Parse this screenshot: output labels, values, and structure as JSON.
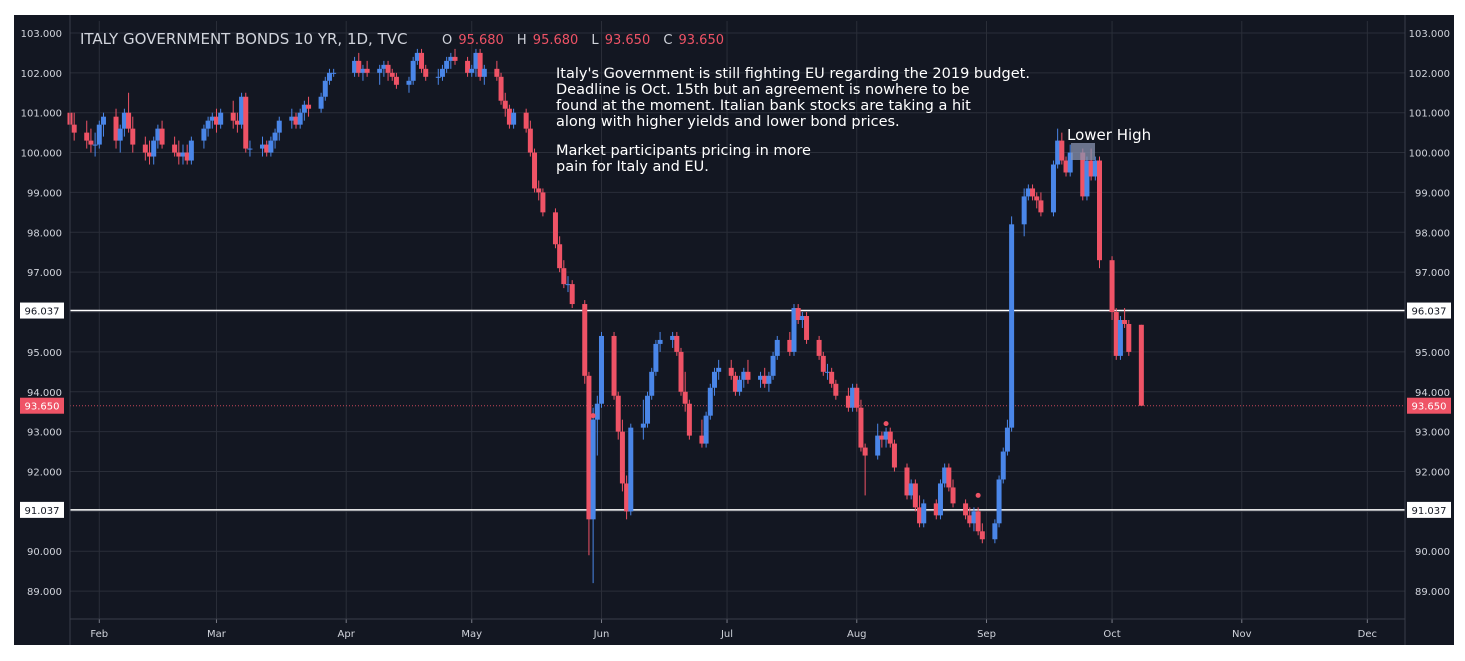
{
  "header": {
    "title": "ITALY GOVERNMENT BONDS 10 YR, 1D, TVC",
    "open_label": "O",
    "open_value": "95.680",
    "high_label": "H",
    "high_value": "95.680",
    "low_label": "L",
    "low_value": "93.650",
    "close_label": "C",
    "close_value": "93.650"
  },
  "annotations": {
    "note_lines": [
      "Italy's Government is still fighting EU regarding the 2019 budget.",
      "Deadline is Oct. 15th but an agreement is nowhere to be",
      "found at the moment. Italian bank stocks are taking a hit",
      "along with higher yields and lower bond prices.",
      "",
      "Market participants pricing in more",
      "pain for Italy and EU."
    ],
    "lower_high": "Lower High"
  },
  "colors": {
    "background": "#131722",
    "grid": "#2a2e39",
    "up": "#4a86e8",
    "down": "#ef5366",
    "level_line": "#ffffff",
    "last_price": "#ef5366",
    "text": "#d1d4dc"
  },
  "chart_data": {
    "type": "candlestick",
    "symbol": "ITALY GOVERNMENT BONDS 10 YR",
    "interval": "1D",
    "source": "TVC",
    "y_axis": {
      "ylim": [
        88.3,
        103.3
      ],
      "tick_labels": [
        "103.000",
        "102.000",
        "101.000",
        "100.000",
        "99.000",
        "98.000",
        "97.000",
        "96.000",
        "95.000",
        "94.000",
        "93.000",
        "92.000",
        "91.000",
        "90.000",
        "89.000"
      ],
      "tick_values": [
        103,
        102,
        101,
        100,
        99,
        98,
        97,
        96,
        95,
        94,
        93,
        92,
        91,
        90,
        89
      ]
    },
    "x_axis": {
      "tick_labels": [
        "Feb",
        "Mar",
        "Apr",
        "May",
        "Jun",
        "Jul",
        "Aug",
        "Sep",
        "Oct",
        "Nov",
        "Dec"
      ],
      "tick_dates": [
        "2018-02-01",
        "2018-03-01",
        "2018-04-01",
        "2018-05-01",
        "2018-06-01",
        "2018-07-01",
        "2018-08-01",
        "2018-09-01",
        "2018-10-01",
        "2018-11-01",
        "2018-12-01"
      ],
      "range": [
        "2018-01-25",
        "2018-12-10"
      ]
    },
    "horizontal_levels": [
      {
        "value": 96.037,
        "label": "96.037"
      },
      {
        "value": 91.037,
        "label": "91.037"
      }
    ],
    "last_price": {
      "value": 93.65,
      "label": "93.650"
    },
    "grid": true,
    "candles": [
      [
        "2018-01-25",
        101.0,
        101.4,
        100.4,
        100.7
      ],
      [
        "2018-01-26",
        100.7,
        101.0,
        100.3,
        100.5
      ],
      [
        "2018-01-29",
        100.5,
        100.8,
        100.1,
        100.3
      ],
      [
        "2018-01-30",
        100.3,
        100.6,
        100.0,
        100.2
      ],
      [
        "2018-01-31",
        100.2,
        100.5,
        99.9,
        100.2
      ],
      [
        "2018-02-01",
        100.2,
        100.8,
        100.1,
        100.7
      ],
      [
        "2018-02-02",
        100.7,
        101.0,
        100.4,
        100.9
      ],
      [
        "2018-02-05",
        100.9,
        101.1,
        100.1,
        100.3
      ],
      [
        "2018-02-06",
        100.3,
        100.7,
        100.0,
        100.6
      ],
      [
        "2018-02-07",
        100.6,
        101.1,
        100.4,
        101.0
      ],
      [
        "2018-02-08",
        101.0,
        101.5,
        100.5,
        100.6
      ],
      [
        "2018-02-09",
        100.6,
        100.9,
        100.0,
        100.2
      ],
      [
        "2018-02-12",
        100.2,
        100.4,
        99.8,
        100.0
      ],
      [
        "2018-02-13",
        100.0,
        100.3,
        99.7,
        99.9
      ],
      [
        "2018-02-14",
        99.9,
        100.4,
        99.7,
        100.3
      ],
      [
        "2018-02-15",
        100.3,
        100.7,
        100.1,
        100.6
      ],
      [
        "2018-02-16",
        100.6,
        100.8,
        100.1,
        100.2
      ],
      [
        "2018-02-19",
        100.2,
        100.4,
        99.9,
        100.0
      ],
      [
        "2018-02-20",
        100.0,
        100.3,
        99.7,
        99.9
      ],
      [
        "2018-02-21",
        99.9,
        100.2,
        99.7,
        100.0
      ],
      [
        "2018-02-22",
        100.0,
        100.2,
        99.7,
        99.8
      ],
      [
        "2018-02-23",
        99.8,
        100.4,
        99.7,
        100.3
      ],
      [
        "2018-02-26",
        100.3,
        100.7,
        100.1,
        100.6
      ],
      [
        "2018-02-27",
        100.6,
        100.9,
        100.4,
        100.8
      ],
      [
        "2018-02-28",
        100.8,
        101.0,
        100.6,
        100.9
      ],
      [
        "2018-03-01",
        100.9,
        101.1,
        100.5,
        100.7
      ],
      [
        "2018-03-02",
        100.7,
        101.1,
        100.6,
        101.0
      ],
      [
        "2018-03-05",
        101.0,
        101.3,
        100.6,
        100.8
      ],
      [
        "2018-03-06",
        100.8,
        101.0,
        100.5,
        100.7
      ],
      [
        "2018-03-07",
        100.7,
        101.5,
        100.6,
        101.4
      ],
      [
        "2018-03-08",
        101.4,
        101.5,
        100.0,
        100.1
      ],
      [
        "2018-03-09",
        100.1,
        100.3,
        99.9,
        100.1
      ],
      [
        "2018-03-12",
        100.1,
        100.4,
        99.9,
        100.2
      ],
      [
        "2018-03-13",
        100.2,
        100.3,
        99.9,
        100.0
      ],
      [
        "2018-03-14",
        100.0,
        100.4,
        99.9,
        100.3
      ],
      [
        "2018-03-15",
        100.3,
        100.6,
        100.1,
        100.5
      ],
      [
        "2018-03-16",
        100.5,
        100.9,
        100.3,
        100.8
      ],
      [
        "2018-03-19",
        100.8,
        101.1,
        100.6,
        100.9
      ],
      [
        "2018-03-20",
        100.9,
        101.0,
        100.6,
        100.7
      ],
      [
        "2018-03-21",
        100.7,
        101.1,
        100.6,
        101.0
      ],
      [
        "2018-03-22",
        101.0,
        101.3,
        100.8,
        101.2
      ],
      [
        "2018-03-23",
        101.2,
        101.4,
        100.9,
        101.1
      ],
      [
        "2018-03-26",
        101.1,
        101.5,
        101.0,
        101.4
      ],
      [
        "2018-03-27",
        101.4,
        101.9,
        101.3,
        101.8
      ],
      [
        "2018-03-28",
        101.8,
        102.1,
        101.7,
        102.0
      ],
      [
        "2018-03-29",
        102.0,
        102.1,
        101.9,
        102.0
      ],
      [
        "2018-04-03",
        102.0,
        102.4,
        101.9,
        102.3
      ],
      [
        "2018-04-04",
        102.3,
        102.5,
        101.9,
        102.0
      ],
      [
        "2018-04-05",
        102.0,
        102.2,
        101.8,
        102.1
      ],
      [
        "2018-04-06",
        102.1,
        102.3,
        101.9,
        102.0
      ],
      [
        "2018-04-09",
        102.0,
        102.2,
        101.7,
        102.1
      ],
      [
        "2018-04-10",
        102.1,
        102.3,
        101.9,
        102.2
      ],
      [
        "2018-04-11",
        102.2,
        102.3,
        101.8,
        102.0
      ],
      [
        "2018-04-12",
        102.0,
        102.1,
        101.8,
        101.9
      ],
      [
        "2018-04-13",
        101.9,
        102.0,
        101.6,
        101.7
      ],
      [
        "2018-04-16",
        101.7,
        101.9,
        101.5,
        101.8
      ],
      [
        "2018-04-17",
        101.8,
        102.4,
        101.7,
        102.3
      ],
      [
        "2018-04-18",
        102.3,
        102.6,
        102.2,
        102.5
      ],
      [
        "2018-04-19",
        102.5,
        102.6,
        102.0,
        102.1
      ],
      [
        "2018-04-20",
        102.1,
        102.2,
        101.8,
        101.9
      ],
      [
        "2018-04-23",
        101.9,
        102.1,
        101.7,
        101.9
      ],
      [
        "2018-04-24",
        101.9,
        102.2,
        101.8,
        102.1
      ],
      [
        "2018-04-25",
        102.1,
        102.4,
        102.0,
        102.3
      ],
      [
        "2018-04-26",
        102.3,
        102.5,
        102.1,
        102.4
      ],
      [
        "2018-04-27",
        102.4,
        102.6,
        102.2,
        102.3
      ],
      [
        "2018-04-30",
        102.3,
        102.4,
        101.9,
        102.0
      ],
      [
        "2018-05-01",
        102.0,
        102.2,
        101.9,
        102.1
      ],
      [
        "2018-05-02",
        102.1,
        102.6,
        101.9,
        102.5
      ],
      [
        "2018-05-03",
        102.5,
        102.6,
        101.8,
        101.9
      ],
      [
        "2018-05-04",
        101.9,
        102.2,
        101.7,
        102.1
      ],
      [
        "2018-05-07",
        102.1,
        102.3,
        101.8,
        101.9
      ],
      [
        "2018-05-08",
        101.9,
        102.0,
        101.2,
        101.3
      ],
      [
        "2018-05-09",
        101.3,
        101.5,
        100.9,
        101.1
      ],
      [
        "2018-05-10",
        101.1,
        101.2,
        100.6,
        100.7
      ],
      [
        "2018-05-11",
        100.7,
        101.1,
        100.6,
        101.0
      ],
      [
        "2018-05-14",
        101.0,
        101.1,
        100.5,
        100.6
      ],
      [
        "2018-05-15",
        100.6,
        100.8,
        99.9,
        100.0
      ],
      [
        "2018-05-16",
        100.0,
        100.1,
        99.0,
        99.1
      ],
      [
        "2018-05-17",
        99.1,
        99.3,
        98.8,
        99.0
      ],
      [
        "2018-05-18",
        99.0,
        99.1,
        98.4,
        98.5
      ],
      [
        "2018-05-21",
        98.5,
        98.6,
        97.6,
        97.7
      ],
      [
        "2018-05-22",
        97.7,
        97.9,
        97.0,
        97.1
      ],
      [
        "2018-05-23",
        97.1,
        97.3,
        96.6,
        96.7
      ],
      [
        "2018-05-24",
        96.7,
        96.9,
        96.5,
        96.7
      ],
      [
        "2018-05-25",
        96.7,
        96.8,
        96.1,
        96.2
      ],
      [
        "2018-05-28",
        96.2,
        96.3,
        94.2,
        94.4
      ],
      [
        "2018-05-29",
        94.4,
        94.5,
        89.9,
        90.8
      ],
      [
        "2018-05-30",
        90.8,
        93.6,
        89.2,
        93.3
      ],
      [
        "2018-05-31",
        93.3,
        93.9,
        92.4,
        93.7
      ],
      [
        "2018-06-01",
        93.7,
        95.5,
        93.6,
        95.4
      ],
      [
        "2018-06-04",
        95.4,
        95.5,
        93.8,
        93.9
      ],
      [
        "2018-06-05",
        93.9,
        94.0,
        92.8,
        93.0
      ],
      [
        "2018-06-06",
        93.0,
        93.3,
        91.5,
        91.7
      ],
      [
        "2018-06-07",
        91.7,
        91.9,
        90.8,
        91.0
      ],
      [
        "2018-06-08",
        91.0,
        93.2,
        90.9,
        93.1
      ],
      [
        "2018-06-11",
        93.1,
        93.8,
        92.8,
        93.2
      ],
      [
        "2018-06-12",
        93.2,
        94.0,
        93.1,
        93.9
      ],
      [
        "2018-06-13",
        93.9,
        94.6,
        93.8,
        94.5
      ],
      [
        "2018-06-14",
        94.5,
        95.3,
        94.4,
        95.2
      ],
      [
        "2018-06-15",
        95.2,
        95.5,
        95.0,
        95.3
      ],
      [
        "2018-06-18",
        95.3,
        95.5,
        95.1,
        95.4
      ],
      [
        "2018-06-19",
        95.4,
        95.5,
        94.9,
        95.0
      ],
      [
        "2018-06-20",
        95.0,
        95.1,
        93.9,
        94.0
      ],
      [
        "2018-06-21",
        94.0,
        94.5,
        93.5,
        93.7
      ],
      [
        "2018-06-22",
        93.7,
        93.8,
        92.8,
        92.9
      ],
      [
        "2018-06-25",
        92.9,
        93.3,
        92.6,
        92.7
      ],
      [
        "2018-06-26",
        92.7,
        93.5,
        92.6,
        93.4
      ],
      [
        "2018-06-27",
        93.4,
        94.2,
        93.3,
        94.1
      ],
      [
        "2018-06-28",
        94.1,
        94.6,
        93.9,
        94.5
      ],
      [
        "2018-06-29",
        94.5,
        94.8,
        94.3,
        94.6
      ],
      [
        "2018-07-02",
        94.6,
        94.8,
        94.3,
        94.4
      ],
      [
        "2018-07-03",
        94.4,
        94.5,
        93.9,
        94.0
      ],
      [
        "2018-07-04",
        94.0,
        94.4,
        93.9,
        94.3
      ],
      [
        "2018-07-05",
        94.3,
        94.6,
        94.1,
        94.5
      ],
      [
        "2018-07-06",
        94.5,
        94.8,
        94.2,
        94.3
      ],
      [
        "2018-07-09",
        94.3,
        94.5,
        94.1,
        94.4
      ],
      [
        "2018-07-10",
        94.4,
        94.6,
        94.1,
        94.2
      ],
      [
        "2018-07-11",
        94.2,
        94.5,
        94.0,
        94.4
      ],
      [
        "2018-07-12",
        94.4,
        95.0,
        94.3,
        94.9
      ],
      [
        "2018-07-13",
        94.9,
        95.4,
        94.8,
        95.3
      ],
      [
        "2018-07-16",
        95.3,
        95.5,
        94.9,
        95.0
      ],
      [
        "2018-07-17",
        95.0,
        96.2,
        94.9,
        96.1
      ],
      [
        "2018-07-18",
        96.1,
        96.2,
        95.7,
        95.8
      ],
      [
        "2018-07-19",
        95.8,
        96.0,
        95.6,
        95.9
      ],
      [
        "2018-07-20",
        95.9,
        96.0,
        95.2,
        95.3
      ],
      [
        "2018-07-23",
        95.3,
        95.4,
        94.8,
        94.9
      ],
      [
        "2018-07-24",
        94.9,
        95.0,
        94.4,
        94.5
      ],
      [
        "2018-07-25",
        94.5,
        94.7,
        94.3,
        94.5
      ],
      [
        "2018-07-26",
        94.5,
        94.6,
        94.1,
        94.2
      ],
      [
        "2018-07-27",
        94.2,
        94.3,
        93.8,
        93.9
      ],
      [
        "2018-07-30",
        93.9,
        94.1,
        93.5,
        93.6
      ],
      [
        "2018-07-31",
        93.6,
        94.2,
        93.5,
        94.1
      ],
      [
        "2018-08-01",
        94.1,
        94.2,
        93.5,
        93.6
      ],
      [
        "2018-08-02",
        93.6,
        93.8,
        92.5,
        92.6
      ],
      [
        "2018-08-03",
        92.6,
        92.7,
        91.4,
        92.4
      ],
      [
        "2018-08-06",
        92.4,
        93.2,
        92.3,
        92.9
      ],
      [
        "2018-08-07",
        92.9,
        93.0,
        92.6,
        92.8
      ],
      [
        "2018-08-08",
        92.8,
        93.1,
        92.6,
        93.0
      ],
      [
        "2018-08-09",
        93.0,
        93.1,
        92.6,
        92.7
      ],
      [
        "2018-08-10",
        92.7,
        92.8,
        92.0,
        92.1
      ],
      [
        "2018-08-13",
        92.1,
        92.2,
        91.3,
        91.4
      ],
      [
        "2018-08-14",
        91.4,
        91.8,
        91.3,
        91.7
      ],
      [
        "2018-08-15",
        91.7,
        91.8,
        91.0,
        91.1
      ],
      [
        "2018-08-16",
        91.1,
        91.4,
        90.6,
        90.7
      ],
      [
        "2018-08-17",
        90.7,
        91.3,
        90.6,
        91.2
      ],
      [
        "2018-08-20",
        91.2,
        91.3,
        90.8,
        90.9
      ],
      [
        "2018-08-21",
        90.9,
        91.8,
        90.8,
        91.7
      ],
      [
        "2018-08-22",
        91.7,
        92.2,
        91.6,
        92.1
      ],
      [
        "2018-08-23",
        92.1,
        92.2,
        91.5,
        91.6
      ],
      [
        "2018-08-24",
        91.6,
        91.8,
        91.1,
        91.2
      ],
      [
        "2018-08-27",
        91.2,
        91.3,
        90.8,
        90.9
      ],
      [
        "2018-08-28",
        90.9,
        91.1,
        90.6,
        90.7
      ],
      [
        "2018-08-29",
        90.7,
        91.1,
        90.5,
        91.0
      ],
      [
        "2018-08-30",
        91.0,
        91.1,
        90.4,
        90.5
      ],
      [
        "2018-08-31",
        90.5,
        90.7,
        90.2,
        90.3
      ],
      [
        "2018-09-03",
        90.3,
        90.8,
        90.2,
        90.7
      ],
      [
        "2018-09-04",
        90.7,
        91.9,
        90.6,
        91.8
      ],
      [
        "2018-09-05",
        91.8,
        92.6,
        91.7,
        92.5
      ],
      [
        "2018-09-06",
        92.5,
        93.3,
        92.4,
        93.1
      ],
      [
        "2018-09-07",
        93.1,
        98.4,
        93.0,
        98.2
      ],
      [
        "2018-09-10",
        98.2,
        99.1,
        97.9,
        98.9
      ],
      [
        "2018-09-11",
        98.9,
        99.2,
        98.8,
        99.1
      ],
      [
        "2018-09-12",
        99.1,
        99.2,
        98.8,
        98.9
      ],
      [
        "2018-09-13",
        98.9,
        99.0,
        98.6,
        98.8
      ],
      [
        "2018-09-14",
        98.8,
        99.0,
        98.4,
        98.5
      ],
      [
        "2018-09-17",
        98.5,
        99.8,
        98.4,
        99.7
      ],
      [
        "2018-09-18",
        99.7,
        100.6,
        99.6,
        100.3
      ],
      [
        "2018-09-19",
        100.3,
        100.5,
        99.7,
        99.8
      ],
      [
        "2018-09-20",
        99.8,
        99.9,
        99.4,
        99.5
      ],
      [
        "2018-09-21",
        99.5,
        100.2,
        99.4,
        100.0
      ],
      [
        "2018-09-24",
        100.0,
        100.1,
        98.8,
        98.9
      ],
      [
        "2018-09-25",
        98.9,
        99.9,
        98.8,
        99.8
      ],
      [
        "2018-09-26",
        99.8,
        100.1,
        99.3,
        99.4
      ],
      [
        "2018-09-27",
        99.4,
        99.9,
        99.3,
        99.8
      ],
      [
        "2018-09-28",
        99.8,
        99.9,
        97.1,
        97.3
      ],
      [
        "2018-10-01",
        97.3,
        97.4,
        95.8,
        96.0
      ],
      [
        "2018-10-02",
        96.0,
        96.1,
        94.8,
        94.9
      ],
      [
        "2018-10-03",
        94.9,
        95.9,
        94.8,
        95.8
      ],
      [
        "2018-10-04",
        95.8,
        96.1,
        95.6,
        95.7
      ],
      [
        "2018-10-05",
        95.7,
        95.8,
        94.9,
        95.0
      ],
      [
        "2018-10-08",
        95.68,
        95.68,
        93.65,
        93.65
      ]
    ]
  }
}
